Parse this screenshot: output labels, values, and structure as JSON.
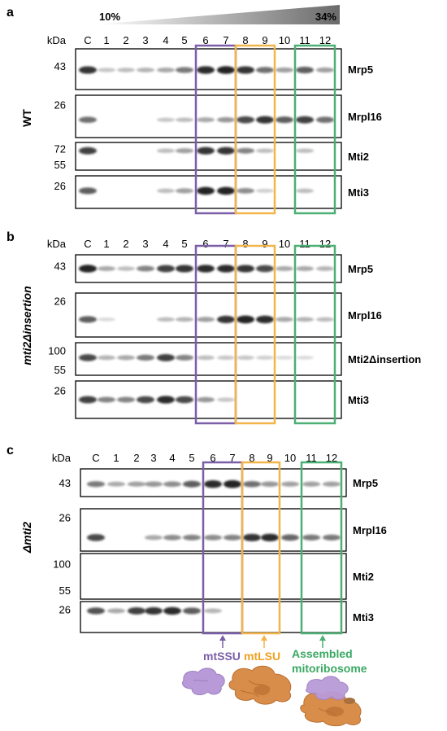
{
  "colors": {
    "mtSSU": "#7b5ea7",
    "mtLSU": "#f2b54a",
    "assembled": "#4caf73",
    "gel_border": "#000000",
    "band": "#1a1a1a"
  },
  "gradient": {
    "low_label": "10%",
    "high_label": "34%"
  },
  "panels": [
    {
      "letter": "a",
      "genotype": "WT",
      "genotype_italic": false,
      "kda_label": "kDa",
      "lane_labels": [
        "C",
        "1",
        "2",
        "3",
        "4",
        "5",
        "6",
        "7",
        "8",
        "9",
        "10",
        "11",
        "12"
      ],
      "blots": [
        {
          "protein": "Mrp5",
          "markers": [
            "43"
          ],
          "intensities": [
            0.9,
            0.15,
            0.2,
            0.25,
            0.3,
            0.55,
            0.95,
            1.0,
            0.9,
            0.6,
            0.35,
            0.7,
            0.35
          ]
        },
        {
          "protein": "Mrpl16",
          "markers": [
            "26"
          ],
          "intensities": [
            0.6,
            0,
            0,
            0,
            0.15,
            0.2,
            0.3,
            0.4,
            0.8,
            0.9,
            0.7,
            0.85,
            0.6
          ]
        },
        {
          "protein": "Mti2",
          "markers": [
            "72",
            "55"
          ],
          "intensities": [
            0.85,
            0,
            0,
            0,
            0.2,
            0.35,
            0.9,
            0.9,
            0.5,
            0.2,
            0,
            0.2,
            0
          ]
        },
        {
          "protein": "Mti3",
          "markers": [
            "26"
          ],
          "intensities": [
            0.7,
            0,
            0,
            0,
            0.2,
            0.35,
            1.0,
            1.0,
            0.45,
            0.1,
            0,
            0.2,
            0
          ]
        }
      ]
    },
    {
      "letter": "b",
      "genotype": "mti2Δinsertion",
      "genotype_italic": true,
      "kda_label": "kDa",
      "lane_labels": [
        "C",
        "1",
        "2",
        "3",
        "4",
        "5",
        "6",
        "7",
        "8",
        "9",
        "10",
        "11",
        "12"
      ],
      "blots": [
        {
          "protein": "Mrp5",
          "markers": [
            "43"
          ],
          "intensities": [
            1.0,
            0.3,
            0.2,
            0.5,
            0.85,
            0.9,
            0.95,
            0.95,
            0.9,
            0.8,
            0.3,
            0.3,
            0.25
          ]
        },
        {
          "protein": "Mrpl16",
          "markers": [
            "26"
          ],
          "intensities": [
            0.7,
            0.05,
            0,
            0,
            0.2,
            0.25,
            0.35,
            0.9,
            1.0,
            0.95,
            0.3,
            0.25,
            0.2
          ]
        },
        {
          "protein": "Mti2Δinsertion",
          "markers": [
            "100",
            "55"
          ],
          "intensities": [
            0.8,
            0.25,
            0.3,
            0.55,
            0.85,
            0.5,
            0.2,
            0.15,
            0.15,
            0.1,
            0.05,
            0.05,
            0
          ]
        },
        {
          "protein": "Mti3",
          "markers": [
            "26"
          ],
          "intensities": [
            0.85,
            0.5,
            0.5,
            0.8,
            0.95,
            0.8,
            0.4,
            0.15,
            0,
            0,
            0,
            0,
            0
          ]
        }
      ]
    },
    {
      "letter": "c",
      "genotype": "Δmti2",
      "genotype_italic": true,
      "kda_label": "kDa",
      "lane_labels": [
        "C",
        "1",
        "2",
        "3",
        "4",
        "5",
        "6",
        "7",
        "8",
        "9",
        "10",
        "11",
        "12"
      ],
      "blots": [
        {
          "protein": "Mrp5",
          "markers": [
            "43"
          ],
          "intensities": [
            0.55,
            0.3,
            0.35,
            0.4,
            0.45,
            0.7,
            0.95,
            1.0,
            0.6,
            0.4,
            0.35,
            0.35,
            0.35
          ]
        },
        {
          "protein": "Mrpl16",
          "markers": [
            "26"
          ],
          "intensities": [
            0.8,
            0,
            0,
            0.3,
            0.45,
            0.5,
            0.45,
            0.5,
            0.9,
            0.95,
            0.65,
            0.55,
            0.55
          ]
        },
        {
          "protein": "Mti2",
          "markers": [
            "100",
            "55"
          ],
          "intensities": [
            0,
            0,
            0,
            0,
            0,
            0,
            0,
            0,
            0,
            0,
            0,
            0,
            0
          ]
        },
        {
          "protein": "Mti3",
          "markers": [
            "26"
          ],
          "intensities": [
            0.75,
            0.3,
            0.85,
            0.9,
            0.95,
            0.7,
            0.25,
            0,
            0,
            0,
            0,
            0,
            0
          ]
        }
      ]
    }
  ],
  "fraction_boxes": [
    {
      "key": "mtSSU",
      "lanes": [
        6,
        7
      ]
    },
    {
      "key": "mtLSU",
      "lanes": [
        8,
        9
      ]
    },
    {
      "key": "assembled",
      "lanes": [
        11,
        12
      ]
    }
  ],
  "legend": {
    "mtSSU_label": "mtSSU",
    "mtLSU_label": "mtLSU",
    "assembled_label_line1": "Assembled",
    "assembled_label_line2": "mitoribosome"
  }
}
